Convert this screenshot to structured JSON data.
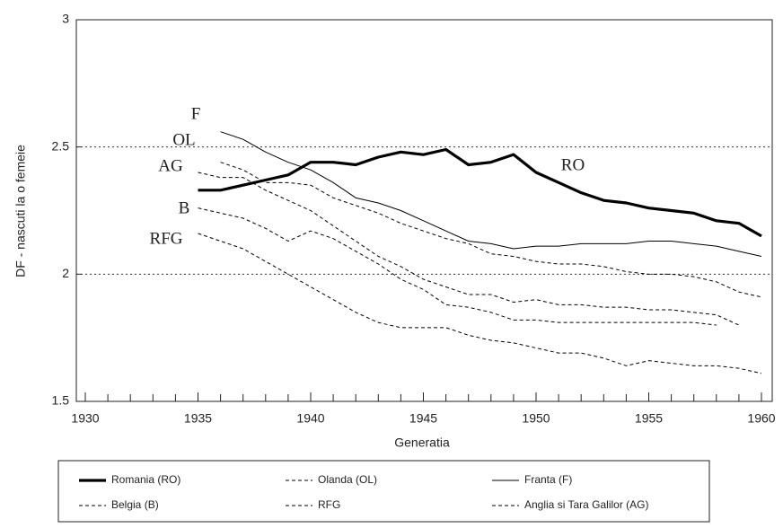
{
  "chart_data": {
    "type": "line",
    "x_label": "Generatia",
    "y_label": "DF - nascuti la o femeie",
    "xlim": [
      1930,
      1960
    ],
    "xticks": [
      1930,
      1935,
      1940,
      1945,
      1950,
      1955,
      1960
    ],
    "ylim": [
      1.5,
      3
    ],
    "yticks": [
      1.5,
      2,
      2.5,
      3
    ],
    "grid_lines": [
      2,
      2.5
    ],
    "x": [
      1935,
      1936,
      1937,
      1938,
      1939,
      1940,
      1941,
      1942,
      1943,
      1944,
      1945,
      1946,
      1947,
      1948,
      1949,
      1950,
      1951,
      1952,
      1953,
      1954,
      1955,
      1956,
      1957,
      1958,
      1959,
      1960
    ],
    "series": [
      {
        "name": "Romania (RO)",
        "color": "#000000",
        "line_style": "thick",
        "values": [
          2.33,
          2.33,
          2.35,
          2.37,
          2.39,
          2.44,
          2.44,
          2.43,
          2.46,
          2.48,
          2.47,
          2.49,
          2.43,
          2.44,
          2.47,
          2.4,
          2.36,
          2.32,
          2.29,
          2.28,
          2.26,
          2.25,
          2.24,
          2.21,
          2.2,
          2.15
        ]
      },
      {
        "name": "Olanda (OL)",
        "color": "#000000",
        "line_style": "dashed",
        "values": [
          null,
          2.44,
          2.41,
          2.36,
          2.36,
          2.35,
          2.3,
          2.27,
          2.24,
          2.2,
          2.17,
          2.14,
          2.12,
          2.08,
          2.07,
          2.05,
          2.04,
          2.04,
          2.03,
          2.01,
          2.0,
          2.0,
          1.99,
          1.97,
          1.93,
          1.91
        ]
      },
      {
        "name": "Franta (F)",
        "color": "#000000",
        "line_style": "thin",
        "values": [
          null,
          2.56,
          2.53,
          2.48,
          2.44,
          2.41,
          2.36,
          2.3,
          2.28,
          2.25,
          2.21,
          2.17,
          2.13,
          2.12,
          2.1,
          2.11,
          2.11,
          2.12,
          2.12,
          2.12,
          2.13,
          2.13,
          2.12,
          2.11,
          2.09,
          2.07
        ]
      },
      {
        "name": "Belgia (B)",
        "color": "#000000",
        "line_style": "dashed",
        "values": [
          2.26,
          2.24,
          2.22,
          2.18,
          2.13,
          2.17,
          2.14,
          2.09,
          2.04,
          1.98,
          1.94,
          1.88,
          1.87,
          1.85,
          1.82,
          1.82,
          1.81,
          1.81,
          1.81,
          1.81,
          1.81,
          1.81,
          1.81,
          1.8,
          null,
          null
        ]
      },
      {
        "name": "RFG",
        "color": "#000000",
        "line_style": "dashed",
        "values": [
          2.16,
          2.13,
          2.1,
          2.05,
          2.0,
          1.95,
          1.9,
          1.85,
          1.81,
          1.79,
          1.79,
          1.79,
          1.76,
          1.74,
          1.73,
          1.71,
          1.69,
          1.69,
          1.67,
          1.64,
          1.66,
          1.65,
          1.64,
          1.64,
          1.63,
          1.61
        ]
      },
      {
        "name": "Anglia si Tara Galilor (AG)",
        "color": "#000000",
        "line_style": "dashed",
        "values": [
          2.4,
          2.38,
          2.38,
          2.33,
          2.29,
          2.25,
          2.19,
          2.13,
          2.07,
          2.03,
          1.98,
          1.95,
          1.92,
          1.92,
          1.89,
          1.9,
          1.88,
          1.88,
          1.87,
          1.87,
          1.86,
          1.86,
          1.85,
          1.84,
          1.8,
          null
        ]
      }
    ],
    "annotations": [
      "F",
      "OL",
      "AG",
      "B",
      "RFG",
      "RO"
    ]
  }
}
